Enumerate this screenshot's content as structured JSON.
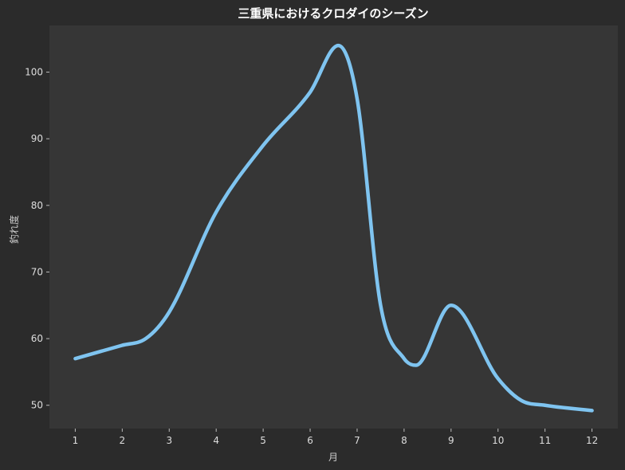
{
  "chart_data": {
    "type": "line",
    "title": "三重県におけるクロダイのシーズン",
    "xlabel": "月",
    "ylabel": "釣れ度",
    "x": [
      1,
      2,
      2.5,
      3,
      4,
      5,
      6,
      6.6,
      7,
      7.5,
      8,
      8.25,
      9,
      10,
      10.5,
      11,
      12
    ],
    "y": [
      57,
      59,
      60,
      64,
      79,
      89,
      97,
      104,
      96,
      65,
      57,
      56,
      65,
      54,
      50.7,
      50,
      49.2
    ],
    "xticks": [
      1,
      2,
      3,
      4,
      5,
      6,
      7,
      8,
      9,
      10,
      11,
      12
    ],
    "yticks": [
      50,
      60,
      70,
      80,
      90,
      100
    ],
    "xlim": [
      0.45,
      12.55
    ],
    "ylim": [
      46.5,
      107
    ],
    "grid": false,
    "colors": {
      "line": "#7fc4f0",
      "plot_background": "#363636",
      "figure_background": "#2b2b2b"
    }
  }
}
